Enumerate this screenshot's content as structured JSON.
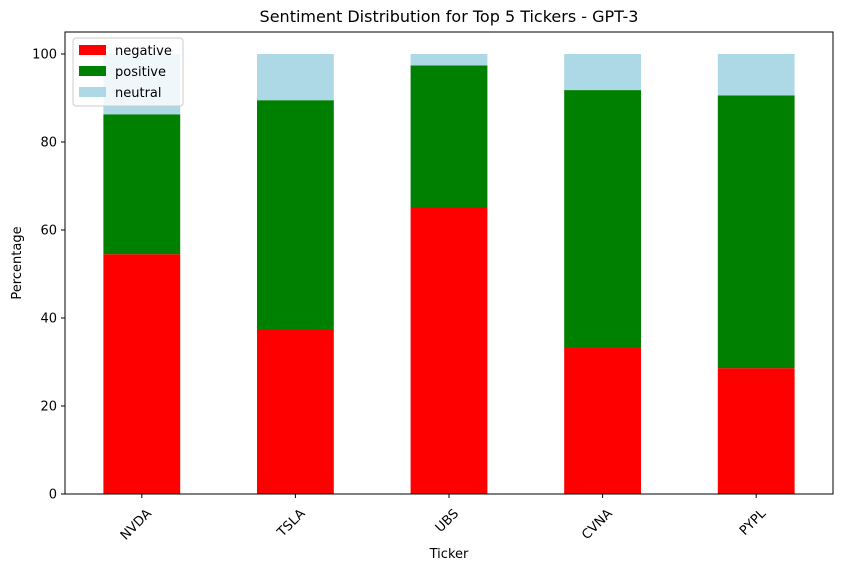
{
  "chart_data": {
    "type": "bar",
    "stacked": true,
    "title": "Sentiment Distribution for Top 5 Tickers - GPT-3",
    "xlabel": "Ticker",
    "ylabel": "Percentage",
    "categories": [
      "NVDA",
      "TSLA",
      "UBS",
      "CVNA",
      "PYPL"
    ],
    "series": [
      {
        "name": "negative",
        "color": "#ff0000",
        "values": [
          54.5,
          37.5,
          65.0,
          33.3,
          28.6
        ]
      },
      {
        "name": "positive",
        "color": "#008000",
        "values": [
          31.8,
          52.0,
          32.4,
          58.5,
          62.0
        ]
      },
      {
        "name": "neutral",
        "color": "#add8e6",
        "values": [
          13.7,
          10.5,
          2.6,
          8.2,
          9.4
        ]
      }
    ],
    "ylim": [
      0,
      105
    ],
    "yticks": [
      0,
      20,
      40,
      60,
      80,
      100
    ],
    "grid": false,
    "legend_position": "top-left",
    "xtick_rotation": 45
  }
}
